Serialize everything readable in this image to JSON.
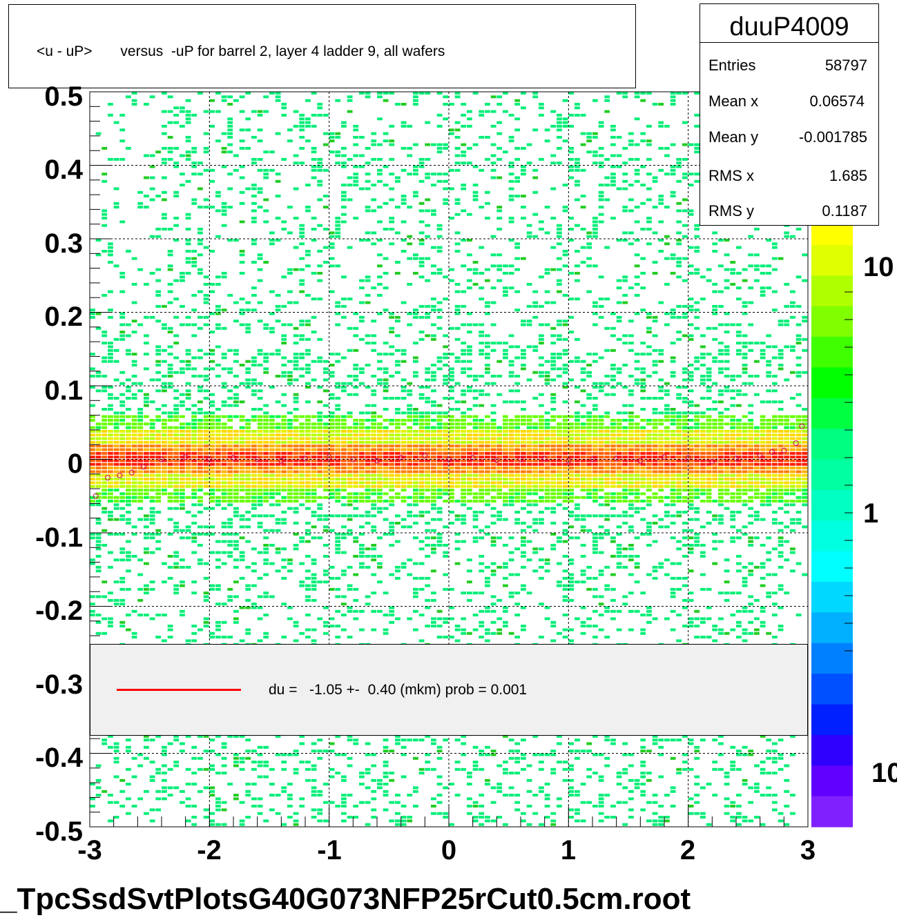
{
  "title": "<u - uP>       versus  -uP for barrel 2, layer 4 ladder 9, all wafers",
  "filename": "_TpcSsdSvtPlotsG40G073NFP25rCut0.5cm.root",
  "stats": {
    "name": "duuP4009",
    "rows": [
      {
        "label": "Entries",
        "value": "58797"
      },
      {
        "label": "Mean x",
        "value": "0.06574"
      },
      {
        "label": "Mean y",
        "value": "-0.001785"
      },
      {
        "label": "RMS x",
        "value": "1.685"
      },
      {
        "label": "RMS y",
        "value": "0.1187"
      }
    ]
  },
  "legend": {
    "line_color": "#ff0000",
    "text": "du =   -1.05 +-  0.40 (mkm) prob = 0.001"
  },
  "chart_data": {
    "type": "heatmap",
    "title": "<u - uP>       versus  -uP for barrel 2, layer 4 ladder 9, all wafers",
    "xlabel": "",
    "ylabel": "",
    "xlim": [
      -3,
      3
    ],
    "ylim": [
      -0.5,
      0.5
    ],
    "x_ticks": [
      "-3",
      "-2",
      "-1",
      "0",
      "1",
      "2",
      "3"
    ],
    "y_ticks": [
      "0.5",
      "0.4",
      "0.3",
      "0.2",
      "0.1",
      "0",
      "-0.1",
      "-0.2",
      "-0.3",
      "-0.4",
      "-0.5"
    ],
    "z_scale": "log",
    "z_ticks": [
      "10",
      "1",
      "10"
    ],
    "grid": true,
    "band_center_y": 0.0,
    "band_core_halfwidth": 0.02,
    "band_outer_halfwidth": 0.05,
    "profile_points": {
      "x": [
        -2.95,
        -2.85,
        -2.75,
        -2.65,
        -2.55,
        -2.4,
        -2.2,
        -2.0,
        -1.8,
        -1.6,
        -1.4,
        -1.2,
        -1.0,
        -0.8,
        -0.6,
        -0.4,
        -0.2,
        0.0,
        0.2,
        0.4,
        0.6,
        0.8,
        1.0,
        1.2,
        1.4,
        1.6,
        1.8,
        2.0,
        2.2,
        2.4,
        2.6,
        2.7,
        2.8,
        2.9,
        2.95
      ],
      "y": [
        -0.05,
        -0.025,
        -0.022,
        -0.018,
        -0.01,
        0.0,
        0.003,
        0.0,
        0.002,
        0.0,
        -0.002,
        0.001,
        0.003,
        0.0,
        -0.002,
        0.002,
        0.005,
        0.0,
        0.002,
        -0.001,
        0.0,
        0.001,
        -0.002,
        0.0,
        0.001,
        -0.002,
        0.003,
        0.002,
        -0.003,
        0.001,
        0.005,
        0.01,
        0.012,
        0.022,
        0.045
      ]
    }
  }
}
